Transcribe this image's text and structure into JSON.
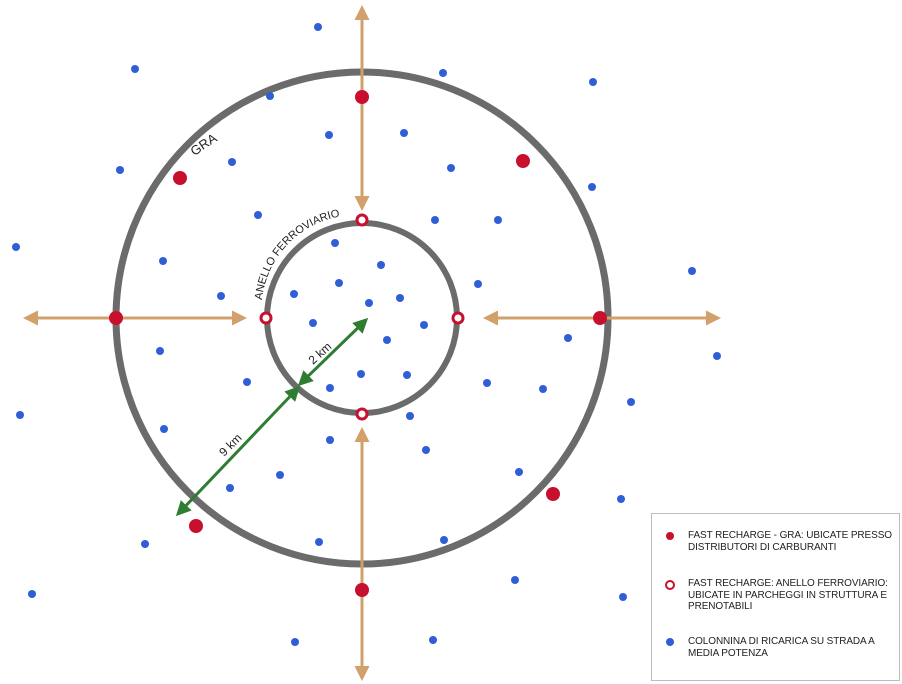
{
  "colors": {
    "ring": "#6b6b6b",
    "arrow": "#d2a06a",
    "radius": "#2e7d32",
    "fast_gra": "#c8102e",
    "fast_rail": "#c8102e",
    "dot": "#2f5fd6"
  },
  "labels": {
    "outer_ring": "GRA",
    "inner_ring": "ANELLO FERROVIARIO",
    "inner_radius": "2 km",
    "outer_radius": "9 km"
  },
  "legend": {
    "items": [
      {
        "symbol": "red-dot-icon",
        "text": "FAST RECHARGE - GRA: UBICATE PRESSO DISTRIBUTORI DI CARBURANTI"
      },
      {
        "symbol": "red-ring-icon",
        "text": "FAST RECHARGE: ANELLO FERROVIARIO: UBICATE IN PARCHEGGI IN STRUTTURA E PRENOTABILI"
      },
      {
        "symbol": "blue-dot-icon",
        "text": "COLONNINA DI RICARICA SU STRADA A MEDIA POTENZA"
      }
    ]
  }
}
